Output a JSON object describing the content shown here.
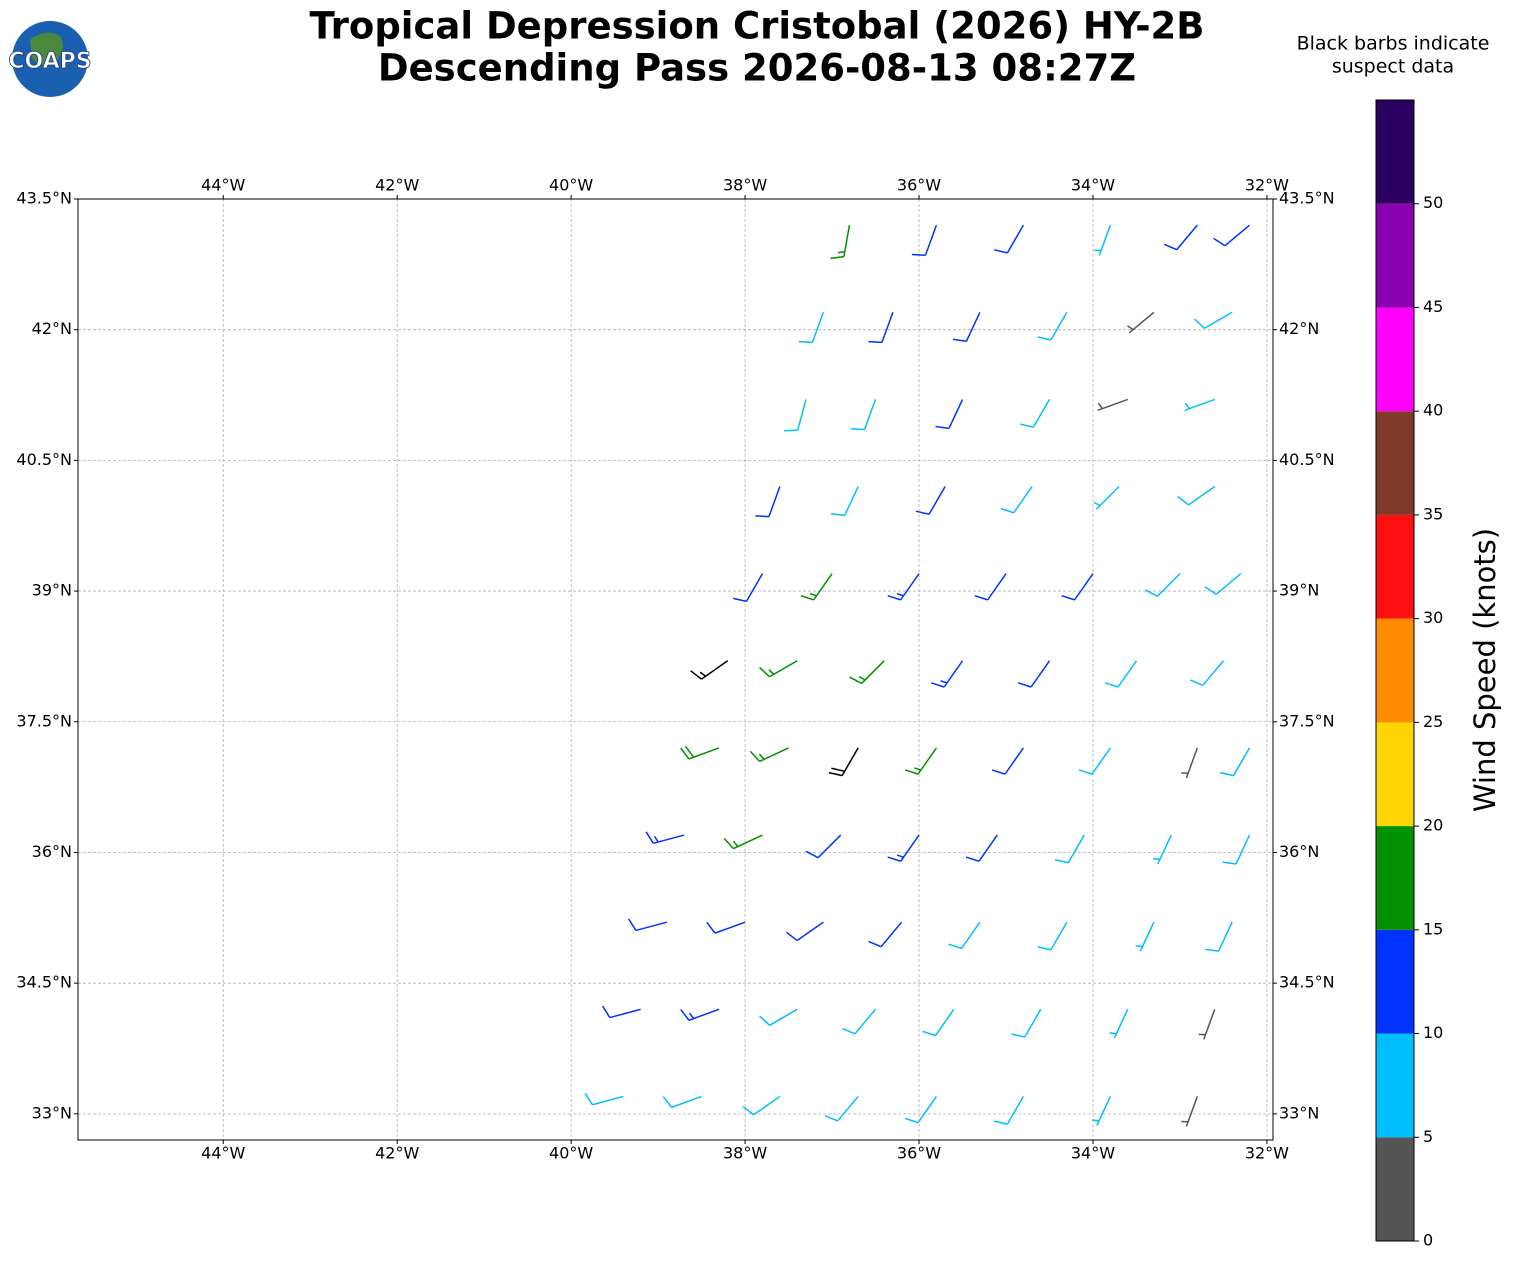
{
  "chart_data": {
    "type": "barbs",
    "title": "Tropical Depression Cristobal (2026) HY-2B",
    "subtitle": "Descending Pass 2026-08-13 08:27Z",
    "logo_text": "COAPS",
    "note": [
      "Black barbs indicate",
      "suspect data"
    ],
    "colorbar_label": "Wind Speed (knots)",
    "xlim": [
      -45.67,
      -31.93
    ],
    "ylim": [
      32.7,
      43.5
    ],
    "xticks": [
      {
        "value": -44,
        "label": "44°W"
      },
      {
        "value": -42,
        "label": "42°W"
      },
      {
        "value": -40,
        "label": "40°W"
      },
      {
        "value": -38,
        "label": "38°W"
      },
      {
        "value": -36,
        "label": "36°W"
      },
      {
        "value": -34,
        "label": "34°W"
      },
      {
        "value": -32,
        "label": "32°W"
      }
    ],
    "yticks": [
      {
        "value": 33,
        "label": "33°N"
      },
      {
        "value": 34.5,
        "label": "34.5°N"
      },
      {
        "value": 36,
        "label": "36°N"
      },
      {
        "value": 37.5,
        "label": "37.5°N"
      },
      {
        "value": 39,
        "label": "39°N"
      },
      {
        "value": 40.5,
        "label": "40.5°N"
      },
      {
        "value": 42,
        "label": "42°N"
      },
      {
        "value": 43.5,
        "label": "43.5°N"
      }
    ],
    "grid": true,
    "clim": [
      0,
      55
    ],
    "cticks": [
      0,
      5,
      10,
      15,
      20,
      25,
      30,
      35,
      40,
      45,
      50
    ],
    "colors": [
      "#555555",
      "#00bfff",
      "#0033ff",
      "#009000",
      "#ffd400",
      "#ff8c00",
      "#ff1010",
      "#803a2a",
      "#ff00ff",
      "#8800b0",
      "#2c0060"
    ],
    "suspect_color": "#000000",
    "barbs": {
      "lon": [
        -36.8,
        -35.8,
        -34.8,
        -33.8,
        -32.8,
        -32.2,
        -37.1,
        -36.3,
        -35.3,
        -34.3,
        -33.3,
        -32.4,
        -37.3,
        -36.5,
        -35.5,
        -34.5,
        -33.6,
        -32.6,
        -37.6,
        -36.7,
        -35.7,
        -34.7,
        -33.7,
        -32.6,
        -37.8,
        -37.0,
        -36.0,
        -35.0,
        -34.0,
        -33.0,
        -32.3,
        -38.2,
        -37.4,
        -36.4,
        -35.5,
        -34.5,
        -33.5,
        -32.5,
        -38.3,
        -37.5,
        -36.7,
        -35.8,
        -34.8,
        -33.8,
        -32.8,
        -32.2,
        -38.7,
        -37.8,
        -36.9,
        -36.0,
        -35.1,
        -34.1,
        -33.1,
        -32.2,
        -38.9,
        -38.0,
        -37.1,
        -36.2,
        -35.3,
        -34.3,
        -33.3,
        -32.4,
        -39.2,
        -38.3,
        -37.4,
        -36.5,
        -35.6,
        -34.6,
        -33.6,
        -32.6,
        -39.4,
        -38.5,
        -37.6,
        -36.7,
        -35.8,
        -34.8,
        -33.8,
        -32.8
      ],
      "lat": [
        43.2,
        43.2,
        43.2,
        43.2,
        43.2,
        43.2,
        42.2,
        42.2,
        42.2,
        42.2,
        42.2,
        42.2,
        41.2,
        41.2,
        41.2,
        41.2,
        41.2,
        41.2,
        40.2,
        40.2,
        40.2,
        40.2,
        40.2,
        40.2,
        39.2,
        39.2,
        39.2,
        39.2,
        39.2,
        39.2,
        39.2,
        38.2,
        38.2,
        38.2,
        38.2,
        38.2,
        38.2,
        38.2,
        37.2,
        37.2,
        37.2,
        37.2,
        37.2,
        37.2,
        37.2,
        37.2,
        36.2,
        36.2,
        36.2,
        36.2,
        36.2,
        36.2,
        36.2,
        36.2,
        35.2,
        35.2,
        35.2,
        35.2,
        35.2,
        35.2,
        35.2,
        35.2,
        34.2,
        34.2,
        34.2,
        34.2,
        34.2,
        34.2,
        34.2,
        34.2,
        33.2,
        33.2,
        33.2,
        33.2,
        33.2,
        33.2,
        33.2,
        33.2
      ],
      "speed": [
        16,
        12,
        12,
        7,
        11,
        12,
        9,
        11,
        12,
        8,
        4,
        8,
        8,
        9,
        11,
        8,
        3,
        7,
        12,
        9,
        12,
        9,
        7,
        8,
        11,
        17,
        13,
        11,
        12,
        9,
        8,
        14,
        17,
        17,
        13,
        11,
        9,
        8,
        18,
        17,
        19,
        16,
        12,
        9,
        3,
        9,
        13,
        17,
        11,
        13,
        11,
        8,
        7,
        8,
        11,
        12,
        11,
        12,
        9,
        8,
        7,
        8,
        10,
        13,
        8,
        9,
        8,
        8,
        7,
        4,
        8,
        8,
        8,
        8,
        8,
        8,
        7,
        4
      ],
      "direction": [
        190,
        200,
        210,
        200,
        220,
        230,
        200,
        200,
        205,
        210,
        230,
        240,
        195,
        200,
        205,
        210,
        250,
        250,
        200,
        205,
        210,
        215,
        225,
        235,
        210,
        215,
        215,
        215,
        215,
        225,
        230,
        235,
        240,
        225,
        215,
        215,
        215,
        220,
        250,
        245,
        210,
        215,
        215,
        215,
        200,
        210,
        255,
        245,
        225,
        215,
        215,
        210,
        205,
        205,
        255,
        250,
        235,
        220,
        215,
        210,
        205,
        205,
        255,
        250,
        240,
        220,
        215,
        210,
        205,
        200,
        255,
        250,
        235,
        220,
        215,
        210,
        205,
        200
      ],
      "suspect": [
        false,
        false,
        false,
        false,
        false,
        false,
        false,
        false,
        false,
        false,
        false,
        false,
        false,
        false,
        false,
        false,
        false,
        false,
        false,
        false,
        false,
        false,
        false,
        false,
        false,
        false,
        false,
        false,
        false,
        false,
        false,
        true,
        false,
        false,
        false,
        false,
        false,
        false,
        false,
        false,
        true,
        false,
        false,
        false,
        false,
        false,
        false,
        false,
        false,
        false,
        false,
        false,
        false,
        false,
        false,
        false,
        false,
        false,
        false,
        false,
        false,
        false,
        false,
        false,
        false,
        false,
        false,
        false,
        false,
        false,
        false,
        false,
        false,
        false,
        false,
        false,
        false,
        false
      ]
    }
  }
}
